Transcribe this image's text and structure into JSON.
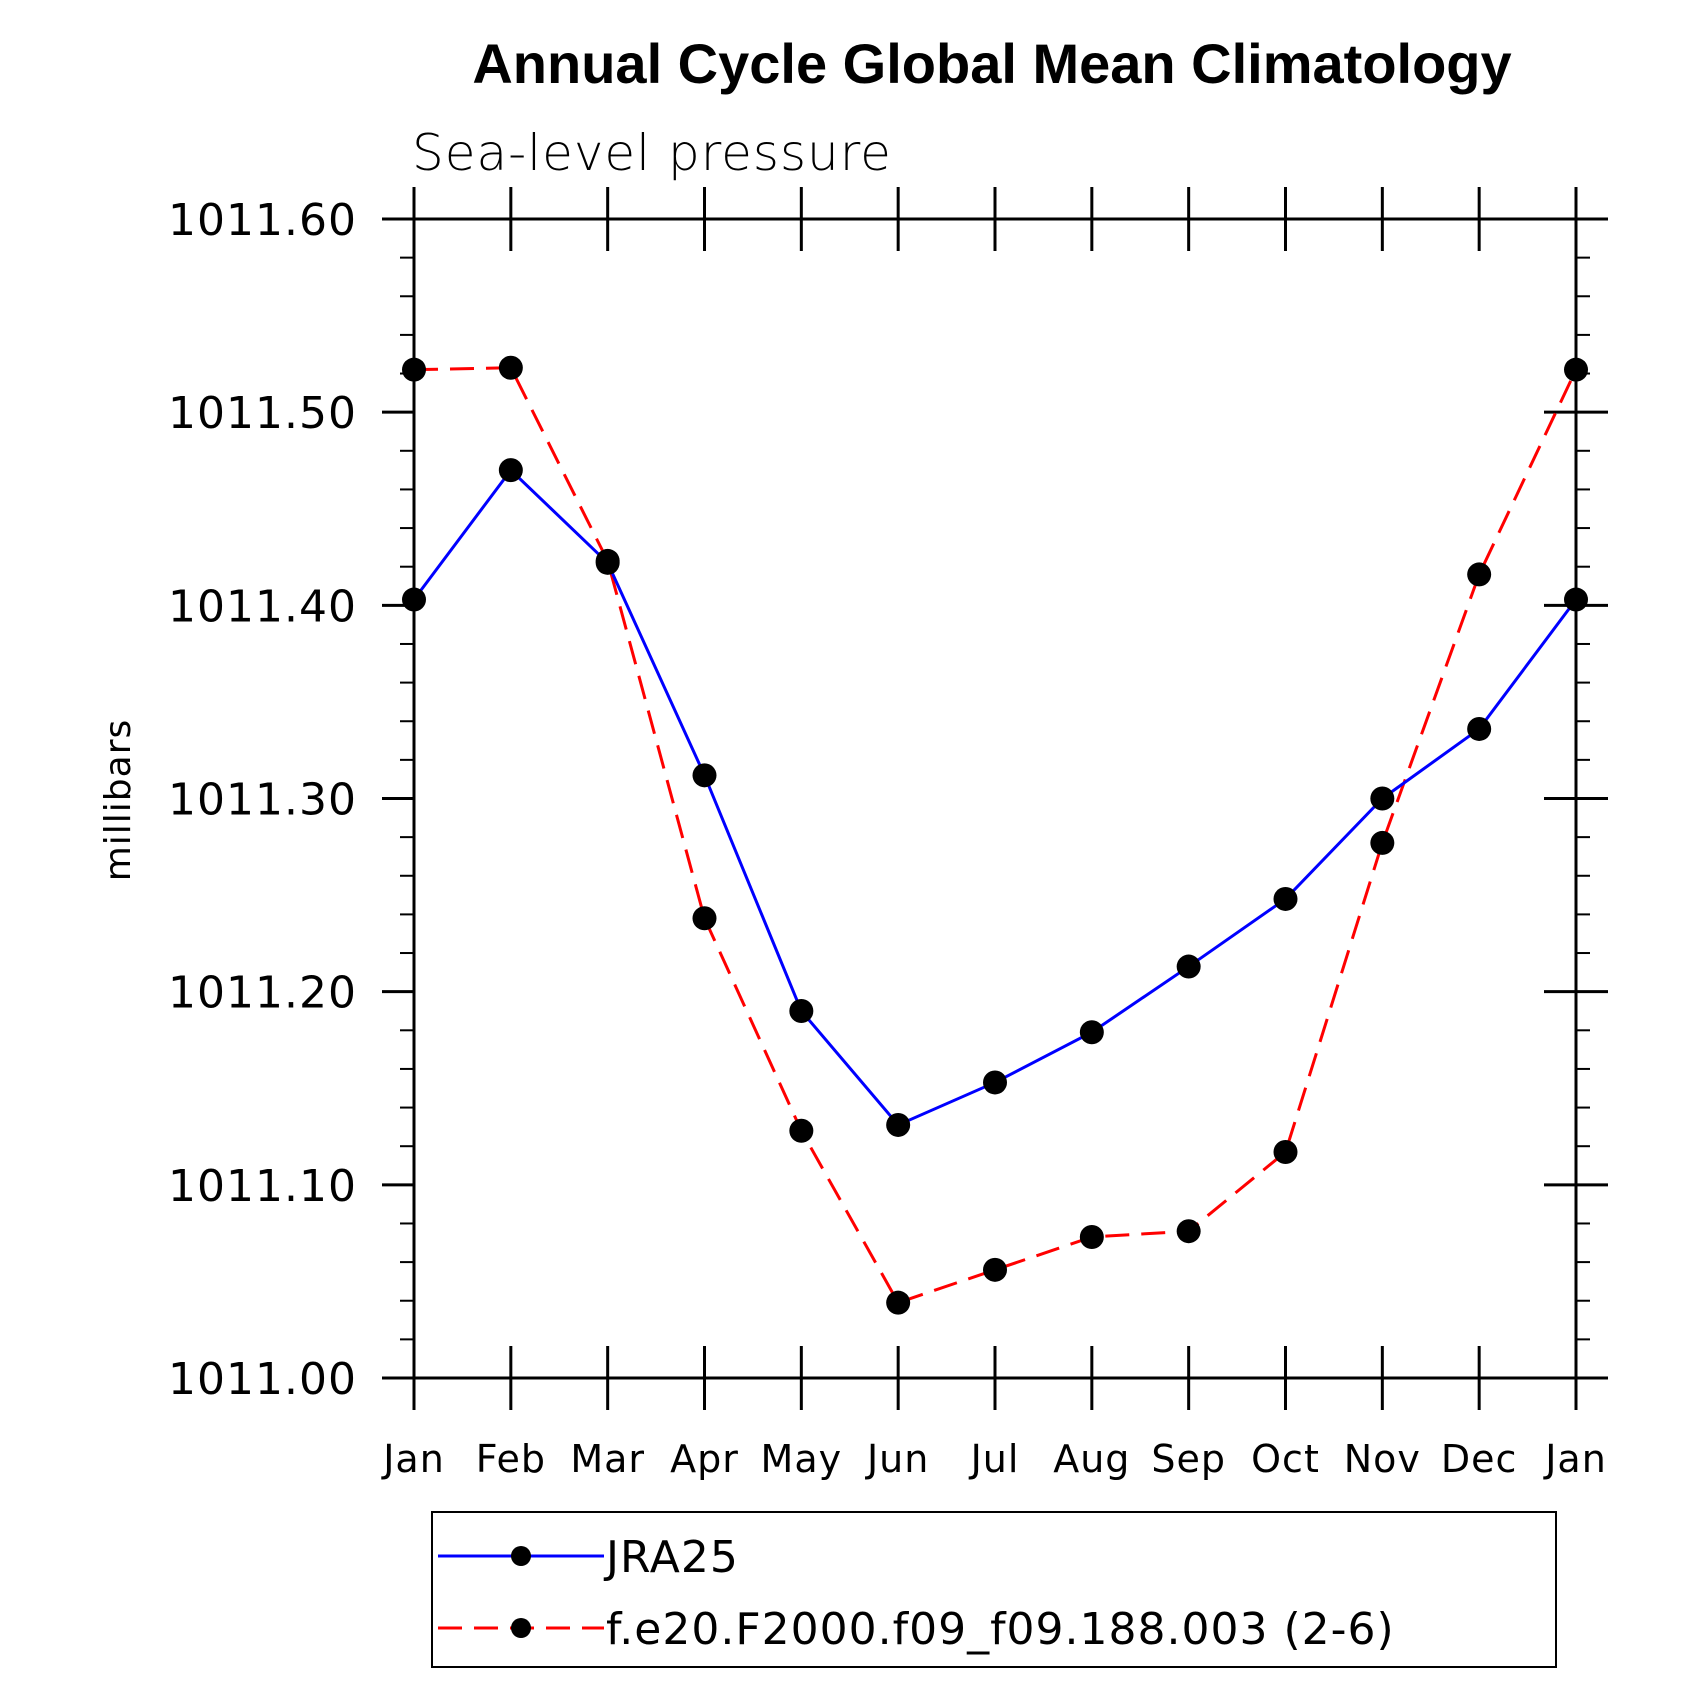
{
  "chart_data": {
    "type": "line",
    "title": "Annual Cycle Global Mean Climatology",
    "subtitle": "Sea-level pressure",
    "xlabel": "",
    "ylabel": "millibars",
    "categories": [
      "Jan",
      "Feb",
      "Mar",
      "Apr",
      "May",
      "Jun",
      "Jul",
      "Aug",
      "Sep",
      "Oct",
      "Nov",
      "Dec",
      "Jan"
    ],
    "ylim": [
      1011.0,
      1011.6
    ],
    "yticks": [
      1011.0,
      1011.1,
      1011.2,
      1011.3,
      1011.4,
      1011.5,
      1011.6
    ],
    "ytick_labels": [
      "1011.00",
      "1011.10",
      "1011.20",
      "1011.30",
      "1011.40",
      "1011.50",
      "1011.60"
    ],
    "grid": false,
    "legend_position": "bottom",
    "series": [
      {
        "name": "JRA25",
        "color": "#0000ff",
        "line_style": "solid",
        "marker": "filled-circle",
        "values": [
          1011.403,
          1011.47,
          1011.422,
          1011.312,
          1011.19,
          1011.131,
          1011.153,
          1011.179,
          1011.213,
          1011.248,
          1011.3,
          1011.336,
          1011.403
        ]
      },
      {
        "name": "f.e20.F2000.f09_f09.188.003 (2-6)",
        "color": "#ff0000",
        "line_style": "dashed",
        "marker": "filled-circle",
        "values": [
          1011.522,
          1011.523,
          1011.423,
          1011.238,
          1011.128,
          1011.039,
          1011.056,
          1011.073,
          1011.076,
          1011.117,
          1011.277,
          1011.416,
          1011.522
        ]
      }
    ]
  }
}
